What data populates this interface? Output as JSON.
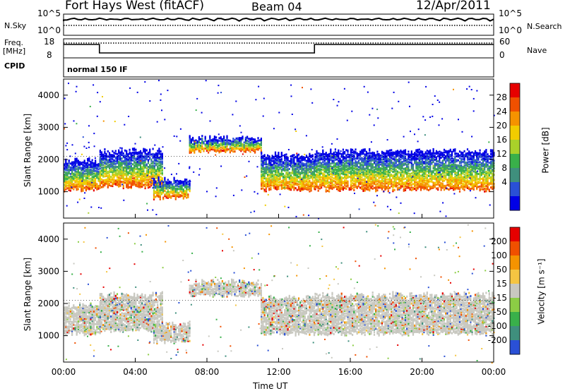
{
  "header": {
    "radar": "Fort Hays West (fitACF)",
    "beam": "Beam 04",
    "date": "12/Apr/2011"
  },
  "strip_labels": {
    "nsky": "N.Sky",
    "nsearch": "N.Search",
    "freq_line1": "Freq.",
    "freq_line2": "[MHz]",
    "nave": "Nave",
    "cpid": "CPID",
    "cpid_value": "normal 150 IF",
    "nsky_ticks": [
      "10^5",
      "10^0"
    ],
    "nsearch_ticks": [
      "10^5",
      "10^0"
    ],
    "freq_ticks": [
      "18",
      "8"
    ],
    "nave_ticks": [
      "60",
      "0"
    ]
  },
  "chart_data": [
    {
      "type": "heatmap",
      "title": "Power",
      "ylabel": "Slant Range [km]",
      "xlabel": "Time UT",
      "x_ticks": [
        "00:00",
        "04:00",
        "08:00",
        "12:00",
        "16:00",
        "20:00",
        "00:00"
      ],
      "y_ticks": [
        "1000",
        "2000",
        "3000",
        "4000"
      ],
      "ylim": [
        180,
        4500
      ],
      "colorbar": {
        "label": "Power [dB]",
        "ticks": [
          "28",
          "24",
          "20",
          "16",
          "12",
          "8",
          "4"
        ],
        "colors": [
          "#0000e6",
          "#2a50d6",
          "#3f8f7d",
          "#39b04a",
          "#a9d12a",
          "#f2cc00",
          "#f59300",
          "#f05000",
          "#e60000"
        ]
      },
      "approx_echo_bands": [
        {
          "start_hour": 0.0,
          "end_hour": 2.0,
          "lower_km": 1100,
          "upper_km": 2000
        },
        {
          "start_hour": 2.0,
          "end_hour": 5.5,
          "lower_km": 1200,
          "upper_km": 2300
        },
        {
          "start_hour": 5.0,
          "end_hour": 7.0,
          "lower_km": 850,
          "upper_km": 1400
        },
        {
          "start_hour": 7.0,
          "end_hour": 11.0,
          "lower_km": 2300,
          "upper_km": 2700
        },
        {
          "start_hour": 11.0,
          "end_hour": 14.0,
          "lower_km": 1100,
          "upper_km": 2200
        },
        {
          "start_hour": 14.0,
          "end_hour": 24.0,
          "lower_km": 1100,
          "upper_km": 2300
        }
      ]
    },
    {
      "type": "heatmap",
      "title": "Velocity",
      "ylabel": "Slant Range [km]",
      "xlabel": "Time UT",
      "x_ticks": [
        "00:00",
        "04:00",
        "08:00",
        "12:00",
        "16:00",
        "20:00",
        "00:00"
      ],
      "y_ticks": [
        "1000",
        "2000",
        "3000",
        "4000"
      ],
      "ylim": [
        180,
        4500
      ],
      "colorbar": {
        "label": "Velocity [m s⁻¹]",
        "ticks": [
          "200",
          "100",
          "50",
          "15",
          "-15",
          "-50",
          "-100",
          "-200"
        ],
        "colors": [
          "#2a50d6",
          "#3f8f7d",
          "#39b04a",
          "#8ccd45",
          "#c8c8c0",
          "#f5c542",
          "#f59300",
          "#f05000",
          "#e60000"
        ]
      }
    }
  ],
  "x_axis_title": "Time UT"
}
